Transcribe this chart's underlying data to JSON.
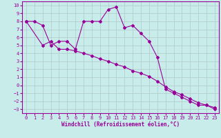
{
  "xlabel": "Windchill (Refroidissement éolien,°C)",
  "bg_color": "#c8ecea",
  "line_color": "#990099",
  "grid_color": "#b0c8c8",
  "xlim": [
    -0.5,
    23.5
  ],
  "ylim": [
    -3.5,
    10.5
  ],
  "xticks": [
    0,
    1,
    2,
    3,
    4,
    5,
    6,
    7,
    8,
    9,
    10,
    11,
    12,
    13,
    14,
    15,
    16,
    17,
    18,
    19,
    20,
    21,
    22,
    23
  ],
  "yticks": [
    -3,
    -2,
    -1,
    0,
    1,
    2,
    3,
    4,
    5,
    6,
    7,
    8,
    9,
    10
  ],
  "line1_x": [
    0,
    1,
    2,
    3,
    4,
    5,
    6,
    7,
    8,
    9,
    10,
    11,
    12,
    13,
    14,
    15,
    16,
    17,
    18,
    19,
    20,
    21,
    22,
    23
  ],
  "line1_y": [
    8,
    8,
    7.5,
    5,
    5.5,
    5.5,
    4.5,
    8,
    8,
    8,
    9.5,
    9.8,
    7.2,
    7.5,
    6.5,
    5.5,
    3.5,
    -0.5,
    -1.0,
    -1.5,
    -2.0,
    -2.5,
    -2.5,
    -3.0
  ],
  "line2_x": [
    0,
    2,
    3,
    4,
    5,
    6,
    7,
    8,
    9,
    10,
    11,
    12,
    13,
    14,
    15,
    16,
    17,
    18,
    19,
    20,
    21,
    22,
    23
  ],
  "line2_y": [
    8,
    5.0,
    5.5,
    4.5,
    4.5,
    4.3,
    4.0,
    3.7,
    3.3,
    3.0,
    2.6,
    2.3,
    1.8,
    1.5,
    1.1,
    0.5,
    -0.2,
    -0.8,
    -1.2,
    -1.7,
    -2.2,
    -2.5,
    -2.8
  ]
}
